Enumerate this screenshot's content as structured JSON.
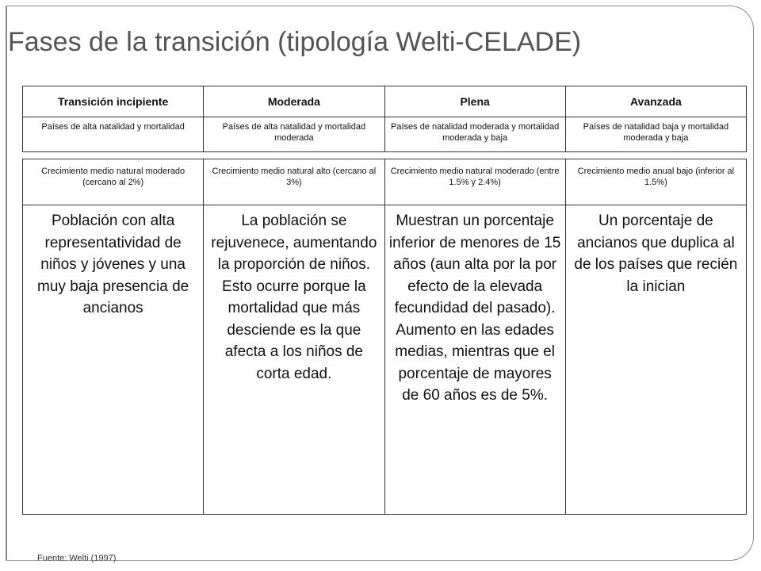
{
  "title": "Fases de la transición (tipología Welti-CELADE)",
  "columns": [
    {
      "header": "Transición incipiente",
      "natalidad": "Países de alta natalidad y mortalidad",
      "crecimiento": "Crecimiento medio natural moderado (cercano al 2%)",
      "poblacion": "Población con alta representatividad de niños y jóvenes y una muy baja presencia de ancianos"
    },
    {
      "header": "Moderada",
      "natalidad": "Países de alta natalidad y mortalidad moderada",
      "crecimiento": "Crecimiento medio natural alto (cercano al 3%)",
      "poblacion": "La población se rejuvenece, aumentando la proporción de niños. Esto ocurre porque la mortalidad que más desciende es la que afecta a los niños de corta edad."
    },
    {
      "header": "Plena",
      "natalidad": "Países de natalidad moderada y mortalidad moderada y baja",
      "crecimiento": "Crecimiento medio natural moderado (entre 1.5% y 2.4%)",
      "poblacion": "Muestran un porcentaje inferior de menores de 15 años (aun alta por la por efecto de la elevada fecundidad del pasado). Aumento en las edades medias, mientras que el porcentaje de mayores de 60 años es de 5%."
    },
    {
      "header": "Avanzada",
      "natalidad": "Países de natalidad baja y mortalidad moderada y baja",
      "crecimiento": "Crecimiento medio anual bajo (inferior al 1.5%)",
      "poblacion": "Un porcentaje de ancianos que duplica al de los países que recién la inician"
    }
  ],
  "source": "Fuente: Welti (1997)"
}
